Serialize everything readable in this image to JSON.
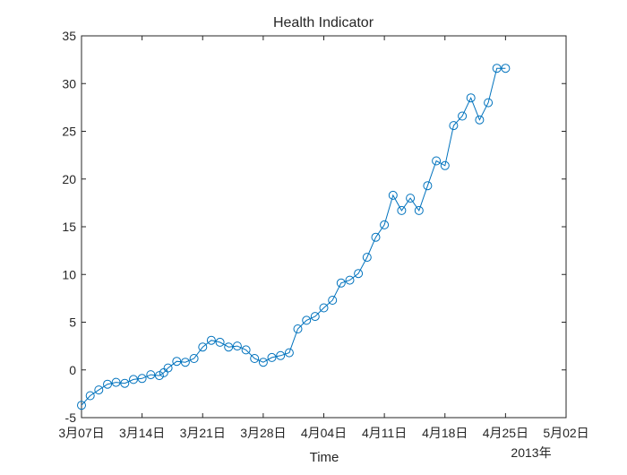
{
  "chart_data": {
    "type": "line",
    "title": "Health Indicator",
    "xlabel": "Time",
    "ylabel": "",
    "x_axis_secondary_label": "2013年",
    "ylim": [
      -5,
      35
    ],
    "xlim": [
      "2013-03-07",
      "2013-05-02"
    ],
    "yticks": [
      -5,
      0,
      5,
      10,
      15,
      20,
      25,
      30,
      35
    ],
    "xticks": [
      {
        "date": "2013-03-07",
        "label": "3月07日"
      },
      {
        "date": "2013-03-14",
        "label": "3月14日"
      },
      {
        "date": "2013-03-21",
        "label": "3月21日"
      },
      {
        "date": "2013-03-28",
        "label": "3月28日"
      },
      {
        "date": "2013-04-04",
        "label": "4月04日"
      },
      {
        "date": "2013-04-11",
        "label": "4月11日"
      },
      {
        "date": "2013-04-18",
        "label": "4月18日"
      },
      {
        "date": "2013-04-25",
        "label": "4月25日"
      },
      {
        "date": "2013-05-02",
        "label": "5月02日"
      }
    ],
    "grid": false,
    "colors": {
      "line": "#0072bd",
      "axis": "#262626"
    },
    "series": [
      {
        "marker": "circle",
        "x": [
          "2013-03-07",
          "2013-03-08",
          "2013-03-09",
          "2013-03-10",
          "2013-03-11",
          "2013-03-12",
          "2013-03-13",
          "2013-03-14",
          "2013-03-15",
          "2013-03-16",
          "2013-03-16",
          "2013-03-17",
          "2013-03-18",
          "2013-03-19",
          "2013-03-20",
          "2013-03-21",
          "2013-03-22",
          "2013-03-23",
          "2013-03-24",
          "2013-03-25",
          "2013-03-26",
          "2013-03-27",
          "2013-03-28",
          "2013-03-29",
          "2013-03-30",
          "2013-03-31",
          "2013-04-01",
          "2013-04-02",
          "2013-04-03",
          "2013-04-04",
          "2013-04-05",
          "2013-04-06",
          "2013-04-07",
          "2013-04-08",
          "2013-04-09",
          "2013-04-10",
          "2013-04-11",
          "2013-04-12",
          "2013-04-13",
          "2013-04-14",
          "2013-04-15",
          "2013-04-16",
          "2013-04-17",
          "2013-04-18",
          "2013-04-19",
          "2013-04-20",
          "2013-04-21",
          "2013-04-22",
          "2013-04-23",
          "2013-04-24",
          "2013-04-25"
        ],
        "values": [
          -3.7,
          -2.7,
          -2.1,
          -1.5,
          -1.3,
          -1.4,
          -1.0,
          -0.9,
          -0.5,
          -0.6,
          -0.3,
          0.2,
          0.9,
          0.8,
          1.2,
          2.4,
          3.1,
          2.9,
          2.4,
          2.5,
          2.1,
          1.2,
          0.8,
          1.3,
          1.5,
          1.8,
          4.3,
          5.2,
          5.6,
          6.5,
          7.3,
          9.1,
          9.4,
          10.1,
          11.8,
          13.9,
          15.2,
          18.3,
          16.7,
          18.0,
          16.7,
          19.3,
          21.9,
          21.4,
          25.6,
          26.6,
          28.5,
          26.2,
          28.0,
          31.6,
          31.6
        ]
      }
    ]
  }
}
